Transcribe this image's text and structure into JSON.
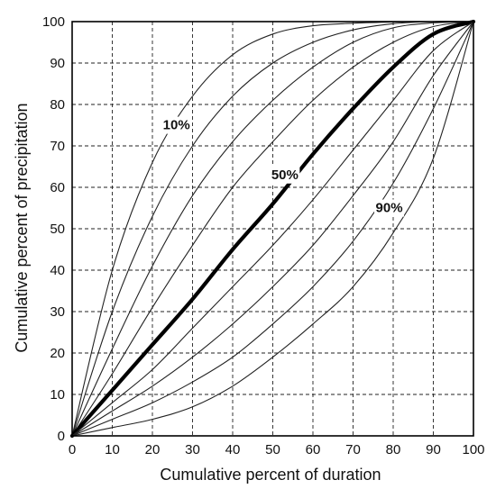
{
  "chart_data": {
    "type": "line",
    "title": "",
    "xlabel": "Cumulative percent of duration",
    "ylabel": "Cumulative percent of precipitation",
    "xlim": [
      0,
      100
    ],
    "ylim": [
      0,
      100
    ],
    "x_ticks": [
      "0",
      "10",
      "20",
      "30",
      "40",
      "50",
      "60",
      "70",
      "80",
      "90",
      "100"
    ],
    "y_ticks": [
      "0",
      "10",
      "20",
      "30",
      "40",
      "50",
      "60",
      "70",
      "80",
      "90",
      "100"
    ],
    "grid": true,
    "grid_style": "dashed",
    "legend": "none",
    "x": [
      0,
      10,
      20,
      30,
      40,
      50,
      60,
      70,
      80,
      90,
      100
    ],
    "series": [
      {
        "values": [
          0,
          40,
          66,
          82,
          92,
          97,
          99,
          99.6,
          99.9,
          100,
          100
        ],
        "emphasis": false
      },
      {
        "values": [
          0,
          30,
          53,
          70,
          82,
          90,
          95,
          98,
          99.5,
          100,
          100
        ],
        "emphasis": false
      },
      {
        "values": [
          0,
          21,
          41,
          58,
          71,
          81,
          89,
          95,
          98.5,
          99.7,
          100
        ],
        "emphasis": false
      },
      {
        "values": [
          0,
          15,
          31,
          46,
          60,
          71,
          81,
          89,
          95,
          98.8,
          100
        ],
        "emphasis": false
      },
      {
        "values": [
          0,
          11,
          22,
          33,
          45,
          56,
          68,
          79,
          89,
          97,
          100
        ],
        "emphasis": true
      },
      {
        "values": [
          0,
          8,
          16,
          26,
          36,
          46,
          57,
          69,
          81,
          93,
          100
        ],
        "emphasis": false
      },
      {
        "values": [
          0,
          6,
          12,
          19,
          27,
          36,
          46,
          58,
          71,
          87,
          100
        ],
        "emphasis": false
      },
      {
        "values": [
          0,
          4,
          8,
          13,
          19,
          27,
          36,
          47,
          61,
          79,
          100
        ],
        "emphasis": false
      },
      {
        "values": [
          0,
          2,
          4,
          7,
          12,
          19,
          27,
          36,
          49,
          67,
          100
        ],
        "emphasis": false
      }
    ],
    "annotations": [
      {
        "text": "10%",
        "x": 26,
        "y": 74
      },
      {
        "text": "50%",
        "x": 53,
        "y": 62
      },
      {
        "text": "90%",
        "x": 79,
        "y": 54
      }
    ],
    "colors": {
      "line": "#222222",
      "emphasis_line": "#000000",
      "grid": "#222222",
      "frame": "#000000"
    }
  }
}
